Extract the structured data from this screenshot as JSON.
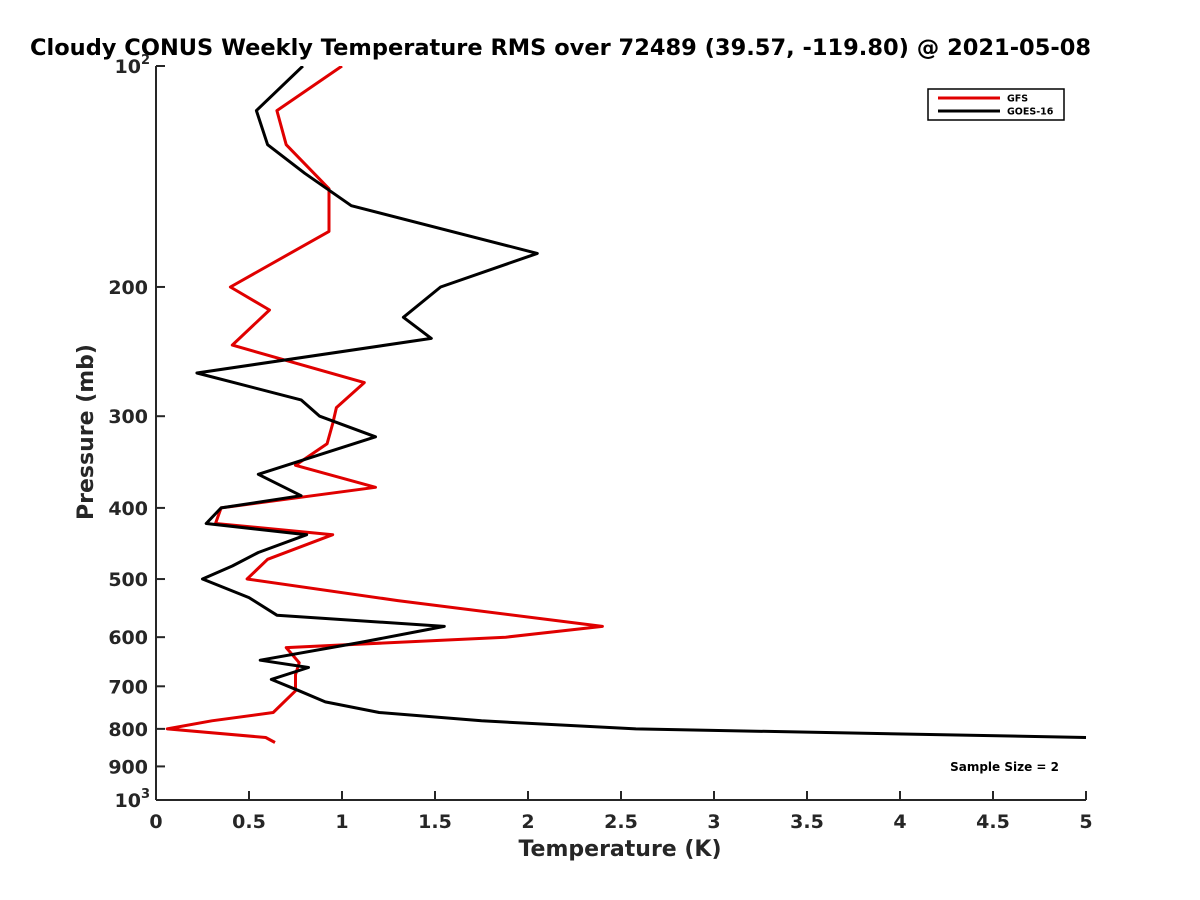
{
  "chart_data": {
    "type": "line",
    "title": "Cloudy CONUS Weekly Temperature RMS over 72489 (39.57, -119.80) @ 2021-05-08",
    "xlabel": "Temperature (K)",
    "ylabel": "Pressure (mb)",
    "xlim": [
      0,
      5
    ],
    "ylim": [
      100,
      1000
    ],
    "y_scale": "log",
    "y_reversed": true,
    "grid": false,
    "legend_position": "top-right",
    "x_ticks": [
      "0",
      "0.5",
      "1",
      "1.5",
      "2",
      "2.5",
      "3",
      "3.5",
      "4",
      "4.5",
      "5"
    ],
    "y_ticks": [
      {
        "value": 100,
        "label": "10",
        "sup": "2"
      },
      {
        "value": 200,
        "label": "200",
        "sup": ""
      },
      {
        "value": 300,
        "label": "300",
        "sup": ""
      },
      {
        "value": 400,
        "label": "400",
        "sup": ""
      },
      {
        "value": 500,
        "label": "500",
        "sup": ""
      },
      {
        "value": 600,
        "label": "600",
        "sup": ""
      },
      {
        "value": 700,
        "label": "700",
        "sup": ""
      },
      {
        "value": 800,
        "label": "800",
        "sup": ""
      },
      {
        "value": 900,
        "label": "900",
        "sup": ""
      },
      {
        "value": 1000,
        "label": "10",
        "sup": "3"
      }
    ],
    "annotation": "Sample Size = 2",
    "series": [
      {
        "name": "GFS",
        "color": "#e00000",
        "points": [
          [
            1.0,
            100
          ],
          [
            0.65,
            115
          ],
          [
            0.7,
            128
          ],
          [
            0.93,
            147
          ],
          [
            0.93,
            168
          ],
          [
            0.4,
            200
          ],
          [
            0.61,
            215
          ],
          [
            0.41,
            240
          ],
          [
            1.12,
            270
          ],
          [
            0.97,
            292
          ],
          [
            0.95,
            307
          ],
          [
            0.92,
            327
          ],
          [
            0.75,
            350
          ],
          [
            1.18,
            375
          ],
          [
            0.35,
            400
          ],
          [
            0.32,
            420
          ],
          [
            0.95,
            435
          ],
          [
            0.6,
            470
          ],
          [
            0.49,
            500
          ],
          [
            1.3,
            535
          ],
          [
            2.4,
            580
          ],
          [
            1.88,
            600
          ],
          [
            0.7,
            620
          ],
          [
            0.77,
            650
          ],
          [
            0.75,
            675
          ],
          [
            0.75,
            710
          ],
          [
            0.63,
            760
          ],
          [
            0.3,
            780
          ],
          [
            0.06,
            800
          ],
          [
            0.59,
            822
          ],
          [
            0.64,
            835
          ]
        ]
      },
      {
        "name": "GOES-16",
        "color": "#000000",
        "points": [
          [
            0.79,
            100
          ],
          [
            0.54,
            115
          ],
          [
            0.6,
            128
          ],
          [
            0.8,
            140
          ],
          [
            1.05,
            155
          ],
          [
            2.05,
            180
          ],
          [
            1.53,
            200
          ],
          [
            1.33,
            220
          ],
          [
            1.48,
            235
          ],
          [
            0.22,
            262
          ],
          [
            0.78,
            285
          ],
          [
            0.88,
            300
          ],
          [
            1.18,
            320
          ],
          [
            0.55,
            360
          ],
          [
            0.78,
            385
          ],
          [
            0.35,
            400
          ],
          [
            0.27,
            420
          ],
          [
            0.81,
            435
          ],
          [
            0.55,
            460
          ],
          [
            0.41,
            480
          ],
          [
            0.25,
            500
          ],
          [
            0.5,
            530
          ],
          [
            0.65,
            560
          ],
          [
            1.55,
            580
          ],
          [
            1.1,
            610
          ],
          [
            0.56,
            645
          ],
          [
            0.82,
            660
          ],
          [
            0.62,
            685
          ],
          [
            0.77,
            710
          ],
          [
            0.91,
            735
          ],
          [
            1.2,
            760
          ],
          [
            1.75,
            780
          ],
          [
            2.58,
            800
          ],
          [
            5.0,
            822
          ]
        ]
      }
    ]
  }
}
